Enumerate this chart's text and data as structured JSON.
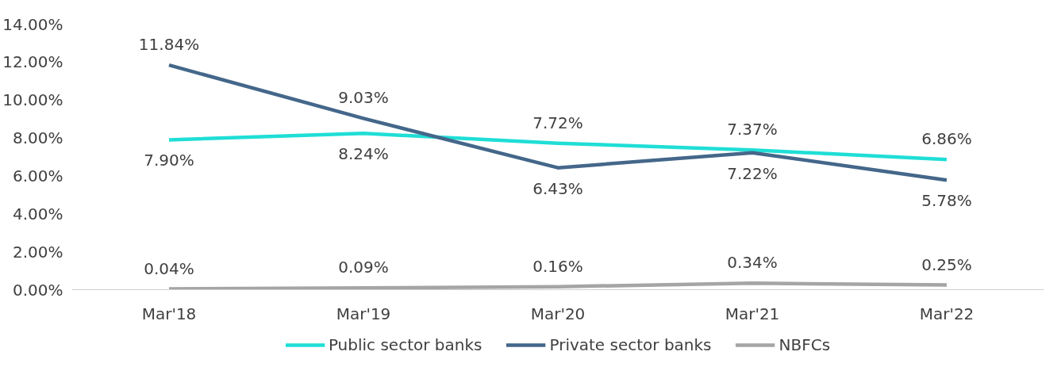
{
  "chart_data": {
    "type": "line",
    "categories": [
      "Mar'18",
      "Mar'19",
      "Mar'20",
      "Mar'21",
      "Mar'22"
    ],
    "series": [
      {
        "name": "Public sector banks",
        "color": "#1fded6",
        "values": [
          7.9,
          8.24,
          7.72,
          7.37,
          6.86
        ],
        "value_labels": [
          "7.90%",
          "8.24%",
          "7.72%",
          "7.37%",
          "6.86%"
        ]
      },
      {
        "name": "Private sector banks",
        "color": "#44678a",
        "values": [
          11.84,
          9.03,
          6.43,
          7.22,
          5.78
        ],
        "value_labels": [
          "11.84%",
          "9.03%",
          "6.43%",
          "7.22%",
          "5.78%"
        ]
      },
      {
        "name": "NBFCs",
        "color": "#a5a5a5",
        "values": [
          0.04,
          0.09,
          0.16,
          0.34,
          0.25
        ],
        "value_labels": [
          "0.04%",
          "0.09%",
          "0.16%",
          "0.34%",
          "0.25%"
        ]
      }
    ],
    "ylim": [
      0,
      14
    ],
    "yticks": [
      {
        "value": 0,
        "label": "0.00%"
      },
      {
        "value": 2,
        "label": "2.00%"
      },
      {
        "value": 4,
        "label": "4.00%"
      },
      {
        "value": 6,
        "label": "6.00%"
      },
      {
        "value": 8,
        "label": "8.00%"
      },
      {
        "value": 10,
        "label": "10.00%"
      },
      {
        "value": 12,
        "label": "12.00%"
      },
      {
        "value": 14,
        "label": "14.00%"
      }
    ],
    "grid": false,
    "legend": "bottom",
    "marker": "none",
    "line_style": "solid"
  }
}
